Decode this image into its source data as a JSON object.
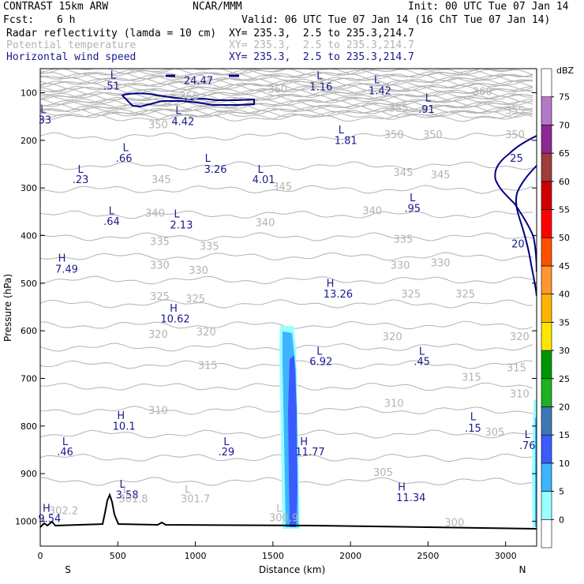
{
  "header": {
    "model": "CONTRAST 15km ARW",
    "center": "NCAR/MMM",
    "init": "Init: 00 UTC Tue 07 Jan 14",
    "fcst_label": "Fcst:",
    "fcst_value": "6 h",
    "valid": "Valid: 06 UTC Tue 07 Jan 14 (16 ChT Tue 07 Jan 14)",
    "fields": [
      {
        "name": "Radar reflectivity (lamda = 10 cm)",
        "xy": "XY= 235.3,  2.5 to 235.3,214.7",
        "color": "#000000"
      },
      {
        "name": "Potential temperature",
        "xy": "XY= 235.3,  2.5 to 235.3,214.7",
        "color": "#b3b3b3"
      },
      {
        "name": "Horizontal wind speed",
        "xy": "XY= 235.3,  2.5 to 235.3,214.7",
        "color": "#1a1a8c"
      }
    ]
  },
  "chart_data": {
    "type": "contour-cross-section",
    "xlabel": "Distance (km)",
    "ylabel": "Pressure (hPa)",
    "xlim": [
      0,
      3200
    ],
    "ylim": [
      1050,
      60
    ],
    "x_ticks": [
      0,
      500,
      1000,
      1500,
      2000,
      2500,
      3000
    ],
    "y_ticks": [
      100,
      200,
      300,
      400,
      500,
      600,
      700,
      800,
      900,
      1000
    ],
    "x_end_labels": {
      "left": "S",
      "right": "N"
    },
    "colorbar": {
      "unit": "dBZ",
      "levels": [
        0,
        5,
        10,
        15,
        20,
        25,
        30,
        35,
        40,
        45,
        50,
        55,
        60,
        65,
        70,
        75
      ],
      "colors": [
        "#ffffff",
        "#99ffff",
        "#3cb4ff",
        "#3c5aff",
        "#3c78b4",
        "#20b020",
        "#009600",
        "#ffe600",
        "#ffb400",
        "#ff9632",
        "#ff5000",
        "#ff0000",
        "#d00000",
        "#a03c3c",
        "#8c2896",
        "#b478c8",
        "#ffffff"
      ]
    },
    "theta_labels": [
      {
        "text": "360",
        "x": 1530,
        "p": 100
      },
      {
        "text": "360",
        "x": 2850,
        "p": 105
      },
      {
        "text": "355",
        "x": 960,
        "p": 115
      },
      {
        "text": "355",
        "x": 2310,
        "p": 140
      },
      {
        "text": "355",
        "x": 3060,
        "p": 145
      },
      {
        "text": "350",
        "x": 760,
        "p": 175
      },
      {
        "text": "350",
        "x": 2280,
        "p": 195
      },
      {
        "text": "350",
        "x": 2530,
        "p": 195
      },
      {
        "text": "350",
        "x": 3060,
        "p": 195
      },
      {
        "text": "345",
        "x": 780,
        "p": 290
      },
      {
        "text": "345",
        "x": 1560,
        "p": 305
      },
      {
        "text": "345",
        "x": 2340,
        "p": 275
      },
      {
        "text": "345",
        "x": 2580,
        "p": 280
      },
      {
        "text": "340",
        "x": 740,
        "p": 360
      },
      {
        "text": "340",
        "x": 1450,
        "p": 380
      },
      {
        "text": "340",
        "x": 2140,
        "p": 355
      },
      {
        "text": "335",
        "x": 770,
        "p": 420
      },
      {
        "text": "335",
        "x": 1090,
        "p": 430
      },
      {
        "text": "335",
        "x": 2340,
        "p": 415
      },
      {
        "text": "330",
        "x": 770,
        "p": 470
      },
      {
        "text": "330",
        "x": 1020,
        "p": 480
      },
      {
        "text": "330",
        "x": 2320,
        "p": 470
      },
      {
        "text": "330",
        "x": 2580,
        "p": 465
      },
      {
        "text": "325",
        "x": 770,
        "p": 535
      },
      {
        "text": "325",
        "x": 1000,
        "p": 540
      },
      {
        "text": "325",
        "x": 2390,
        "p": 530
      },
      {
        "text": "325",
        "x": 2740,
        "p": 530
      },
      {
        "text": "320",
        "x": 760,
        "p": 615
      },
      {
        "text": "320",
        "x": 1070,
        "p": 610
      },
      {
        "text": "320",
        "x": 2270,
        "p": 620
      },
      {
        "text": "320",
        "x": 3090,
        "p": 620
      },
      {
        "text": "315",
        "x": 1080,
        "p": 680
      },
      {
        "text": "315",
        "x": 2780,
        "p": 705
      },
      {
        "text": "315",
        "x": 3070,
        "p": 685
      },
      {
        "text": "310",
        "x": 760,
        "p": 775
      },
      {
        "text": "310",
        "x": 2280,
        "p": 760
      },
      {
        "text": "310",
        "x": 3090,
        "p": 740
      },
      {
        "text": "305",
        "x": 2930,
        "p": 820
      },
      {
        "text": "305",
        "x": 2210,
        "p": 905
      },
      {
        "text": "300",
        "x": 2670,
        "p": 1010
      }
    ],
    "theta_gray_labels": [
      {
        "text": "L",
        "x": 550,
        "p": 940
      },
      {
        "text": "L",
        "x": 950,
        "p": 940
      },
      {
        "text": "L",
        "x": 1540,
        "p": 980
      },
      {
        "text": "301.8",
        "x": 600,
        "p": 960
      },
      {
        "text": "301.7",
        "x": 1000,
        "p": 960
      },
      {
        "text": "302.2",
        "x": 150,
        "p": 985
      },
      {
        "text": "300.9",
        "x": 1570,
        "p": 1000
      }
    ],
    "wind_labels": [
      {
        "text": "24.47",
        "x": 1020,
        "p": 82
      },
      {
        "text": "25",
        "x": 3070,
        "p": 245
      },
      {
        "text": "20",
        "x": 3080,
        "p": 425
      }
    ],
    "hl_labels": [
      {
        "t": "L",
        "x": 470,
        "p": 70
      },
      {
        "t": ".51",
        "x": 460,
        "p": 93
      },
      {
        "t": "L",
        "x": 1800,
        "p": 72
      },
      {
        "t": "1.16",
        "x": 1810,
        "p": 95
      },
      {
        "t": "L",
        "x": 2170,
        "p": 80
      },
      {
        "t": "1.42",
        "x": 2190,
        "p": 103
      },
      {
        "t": "L",
        "x": 20,
        "p": 143
      },
      {
        "t": "33",
        "x": 30,
        "p": 165
      },
      {
        "t": "L",
        "x": 890,
        "p": 145
      },
      {
        "t": "4.42",
        "x": 920,
        "p": 168
      },
      {
        "t": "L",
        "x": 2500,
        "p": 118
      },
      {
        "t": ".91",
        "x": 2490,
        "p": 142
      },
      {
        "t": "L",
        "x": 1940,
        "p": 185
      },
      {
        "t": "1.81",
        "x": 1970,
        "p": 208
      },
      {
        "t": "L",
        "x": 550,
        "p": 223
      },
      {
        "t": ".66",
        "x": 540,
        "p": 245
      },
      {
        "t": "L",
        "x": 260,
        "p": 268
      },
      {
        "t": ".23",
        "x": 260,
        "p": 290
      },
      {
        "t": "L",
        "x": 1080,
        "p": 245
      },
      {
        "t": "3.26",
        "x": 1130,
        "p": 268
      },
      {
        "t": "L",
        "x": 1420,
        "p": 268
      },
      {
        "t": "4.01",
        "x": 1440,
        "p": 290
      },
      {
        "t": "L",
        "x": 2400,
        "p": 328
      },
      {
        "t": ".95",
        "x": 2400,
        "p": 350
      },
      {
        "t": "L",
        "x": 460,
        "p": 355
      },
      {
        "t": ".64",
        "x": 460,
        "p": 378
      },
      {
        "t": "L",
        "x": 880,
        "p": 362
      },
      {
        "t": "2.13",
        "x": 910,
        "p": 385
      },
      {
        "t": "H",
        "x": 140,
        "p": 455
      },
      {
        "t": "7.49",
        "x": 170,
        "p": 478
      },
      {
        "t": "H",
        "x": 1870,
        "p": 508
      },
      {
        "t": "13.26",
        "x": 1920,
        "p": 530
      },
      {
        "t": "H",
        "x": 860,
        "p": 560
      },
      {
        "t": "10.62",
        "x": 870,
        "p": 582
      },
      {
        "t": "L",
        "x": 1800,
        "p": 650
      },
      {
        "t": "6.92",
        "x": 1810,
        "p": 672
      },
      {
        "t": "L",
        "x": 2460,
        "p": 650
      },
      {
        "t": ".45",
        "x": 2460,
        "p": 672
      },
      {
        "t": "H",
        "x": 520,
        "p": 785
      },
      {
        "t": "10.1",
        "x": 540,
        "p": 808
      },
      {
        "t": "L",
        "x": 2790,
        "p": 788
      },
      {
        "t": ".15",
        "x": 2790,
        "p": 812
      },
      {
        "t": "L",
        "x": 160,
        "p": 840
      },
      {
        "t": ".46",
        "x": 160,
        "p": 862
      },
      {
        "t": "L",
        "x": 1200,
        "p": 840
      },
      {
        "t": ".29",
        "x": 1200,
        "p": 862
      },
      {
        "t": "H",
        "x": 1700,
        "p": 840
      },
      {
        "t": "11.77",
        "x": 1740,
        "p": 862
      },
      {
        "t": "L",
        "x": 3140,
        "p": 825
      },
      {
        "t": ".76",
        "x": 3140,
        "p": 848
      },
      {
        "t": "L",
        "x": 530,
        "p": 930
      },
      {
        "t": "3.58",
        "x": 560,
        "p": 952
      },
      {
        "t": "H",
        "x": 2330,
        "p": 935
      },
      {
        "t": "11.34",
        "x": 2390,
        "p": 958
      },
      {
        "t": "H",
        "x": 40,
        "p": 980
      },
      {
        "t": "9.54",
        "x": 60,
        "p": 1002
      }
    ]
  }
}
